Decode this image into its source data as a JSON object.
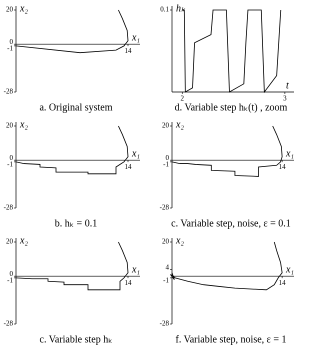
{
  "chart_data": [
    {
      "type": "line",
      "title": "a. Original system",
      "xlabel": "x₁",
      "ylabel": "x₂",
      "xlim": [
        0,
        15
      ],
      "ylim": [
        -28,
        20
      ],
      "xticks": [
        14
      ],
      "yticks": [
        20,
        0,
        -1,
        -28
      ],
      "x": [
        0,
        8,
        12.5,
        13.5,
        14,
        13.9,
        13.3,
        12.8
      ],
      "series": [
        {
          "color": "#000000",
          "values": [
            -1,
            -5,
            -3.5,
            -1,
            2,
            8,
            15,
            20
          ]
        }
      ]
    },
    {
      "type": "line",
      "title": "d. Variable step hₖ(t) , zoom",
      "xlabel": "t",
      "ylabel": "hₖ",
      "xlim": [
        1.9,
        3.05
      ],
      "ylim": [
        0,
        0.1
      ],
      "xticks": [
        2,
        3
      ],
      "yticks": [
        0.1
      ],
      "x": [
        2,
        2.02,
        2.03,
        2.1,
        2.12,
        2.28,
        2.3,
        2.32,
        2.43,
        2.46,
        2.6,
        2.62,
        2.64,
        2.77,
        2.8,
        2.92,
        2.94,
        2.96
      ],
      "series": [
        {
          "color": "#000000",
          "values": [
            0.1,
            0.1,
            0,
            0.005,
            0.06,
            0.07,
            0.1,
            0.1,
            0.1,
            0,
            0.01,
            0.06,
            0.1,
            0.1,
            0,
            0.02,
            0.06,
            0.1
          ]
        }
      ]
    },
    {
      "type": "line",
      "title": "b. hₖ = 0.1",
      "xlabel": "x₁",
      "ylabel": "x₂",
      "xlim": [
        0,
        15
      ],
      "ylim": [
        -28,
        20
      ],
      "xticks": [
        14
      ],
      "yticks": [
        20,
        0,
        -1,
        -28
      ],
      "x": [
        0,
        1,
        3,
        3,
        5,
        5,
        9,
        9,
        12.5,
        12.5,
        13.5,
        14,
        13.9,
        13.3,
        12.8
      ],
      "series": [
        {
          "color": "#000000",
          "values": [
            -1,
            -2,
            -2.5,
            -4,
            -4.5,
            -7,
            -7,
            -8,
            -8,
            -4,
            -1,
            2,
            8,
            15,
            20
          ]
        }
      ]
    },
    {
      "type": "line",
      "title": "c. Variable step, noise, ε = 0.1",
      "xlabel": "x₁",
      "ylabel": "x₂",
      "xlim": [
        0,
        15
      ],
      "ylim": [
        -28,
        20
      ],
      "xticks": [
        14
      ],
      "yticks": [
        20,
        0,
        -1,
        -28
      ],
      "x": [
        0,
        1,
        2,
        3,
        5,
        5,
        8,
        8,
        11,
        11,
        13.3,
        13.8,
        14,
        13.9,
        13.3,
        12.8
      ],
      "series": [
        {
          "color": "#000000",
          "values": [
            -1,
            -2,
            -2,
            -2.5,
            -3,
            -6,
            -6.5,
            -9,
            -9.5,
            -4,
            -3,
            -1,
            2,
            8,
            15,
            20
          ]
        }
      ]
    },
    {
      "type": "line",
      "title": "c. Variable step hₖ",
      "xlabel": "x₁",
      "ylabel": "x₂",
      "xlim": [
        0,
        15
      ],
      "ylim": [
        -28,
        20
      ],
      "xticks": [
        14
      ],
      "yticks": [
        20,
        0,
        -1,
        -28
      ],
      "x": [
        0,
        2,
        4,
        4,
        6,
        6,
        9,
        9,
        13,
        13,
        13.5,
        14,
        13.9,
        13.3,
        12.8
      ],
      "series": [
        {
          "color": "#000000",
          "values": [
            -1,
            -1.5,
            -1.5,
            -3,
            -3.5,
            -5,
            -5,
            -8,
            -8,
            -3,
            -1,
            2,
            8,
            15,
            20
          ]
        }
      ]
    },
    {
      "type": "line",
      "title": "f. Variable step, noise, ε = 1",
      "xlabel": "x₁",
      "ylabel": "x₂",
      "xlim": [
        0,
        15
      ],
      "ylim": [
        -28,
        20
      ],
      "xticks": [
        14
      ],
      "yticks": [
        20,
        4,
        -1,
        -28
      ],
      "x": [
        0,
        0.3,
        -0.2,
        0.4,
        2,
        4,
        6,
        8,
        10,
        12,
        13,
        13.5,
        14,
        13.8,
        13.3,
        13
      ],
      "series": [
        {
          "color": "#000000",
          "values": [
            2,
            -2,
            1,
            -1,
            -3,
            -5,
            -6,
            -7,
            -7.5,
            -8,
            -5,
            -1,
            2,
            8,
            15,
            20
          ]
        }
      ]
    }
  ]
}
